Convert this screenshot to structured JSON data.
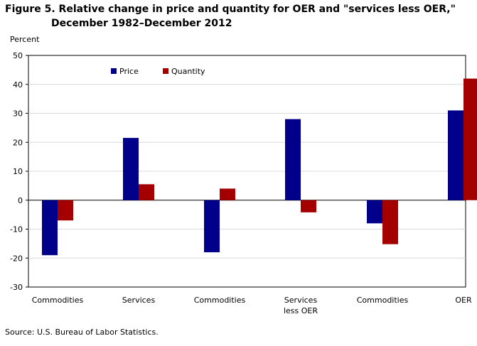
{
  "figure": {
    "title_line1": "Figure 5. Relative change in price and quantity for OER and \"services less OER,\"",
    "title_line2": "December 1982–December 2012",
    "source": "Source: U.S. Bureau of Labor Statistics."
  },
  "chart_data": {
    "type": "bar",
    "ylabel": "Percent",
    "xlabel": "",
    "ylim": [
      -30,
      50
    ],
    "yticks": [
      50,
      40,
      30,
      20,
      10,
      0,
      -10,
      -20,
      -30
    ],
    "grid": true,
    "legend_position": "top-left",
    "categories": [
      "Commodities",
      "Services",
      "Commodities",
      "Services less OER",
      "Commodities",
      "OER"
    ],
    "category_lines": [
      [
        "Commodities"
      ],
      [
        "Services"
      ],
      [
        "Commodities"
      ],
      [
        "Services",
        "less OER"
      ],
      [
        "Commodities"
      ],
      [
        "OER"
      ]
    ],
    "series": [
      {
        "name": "Price",
        "color": "#00008B",
        "values": [
          -19,
          21.5,
          -18,
          28,
          -8,
          31
        ]
      },
      {
        "name": "Quantity",
        "color": "#A50000",
        "values": [
          -7,
          5.5,
          4,
          -4.2,
          -15.2,
          42
        ]
      }
    ]
  }
}
